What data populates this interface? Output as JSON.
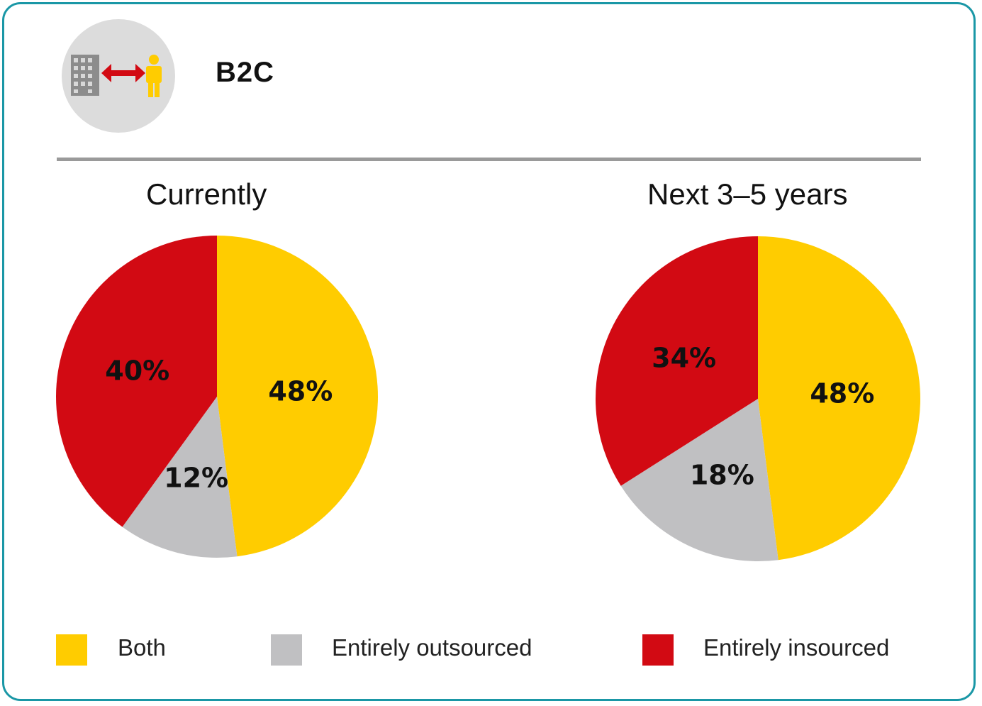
{
  "header": {
    "segment": "B2C",
    "icon": "building-to-person-icon"
  },
  "colors": {
    "both": "#ffcc00",
    "outsourced": "#c0c0c2",
    "insourced": "#d20a13",
    "frame": "#1a97a6"
  },
  "chart_data": [
    {
      "type": "pie",
      "title": "Currently",
      "slices": [
        {
          "name": "Both",
          "value": 48,
          "label": "48%"
        },
        {
          "name": "Entirely outsourced",
          "value": 12,
          "label": "12%"
        },
        {
          "name": "Entirely insourced",
          "value": 40,
          "label": "40%"
        }
      ]
    },
    {
      "type": "pie",
      "title": "Next 3–5 years",
      "slices": [
        {
          "name": "Both",
          "value": 48,
          "label": "48%"
        },
        {
          "name": "Entirely outsourced",
          "value": 18,
          "label": "18%"
        },
        {
          "name": "Entirely insourced",
          "value": 34,
          "label": "34%"
        }
      ]
    }
  ],
  "legend": [
    {
      "label": "Both"
    },
    {
      "label": "Entirely outsourced"
    },
    {
      "label": "Entirely insourced"
    }
  ]
}
